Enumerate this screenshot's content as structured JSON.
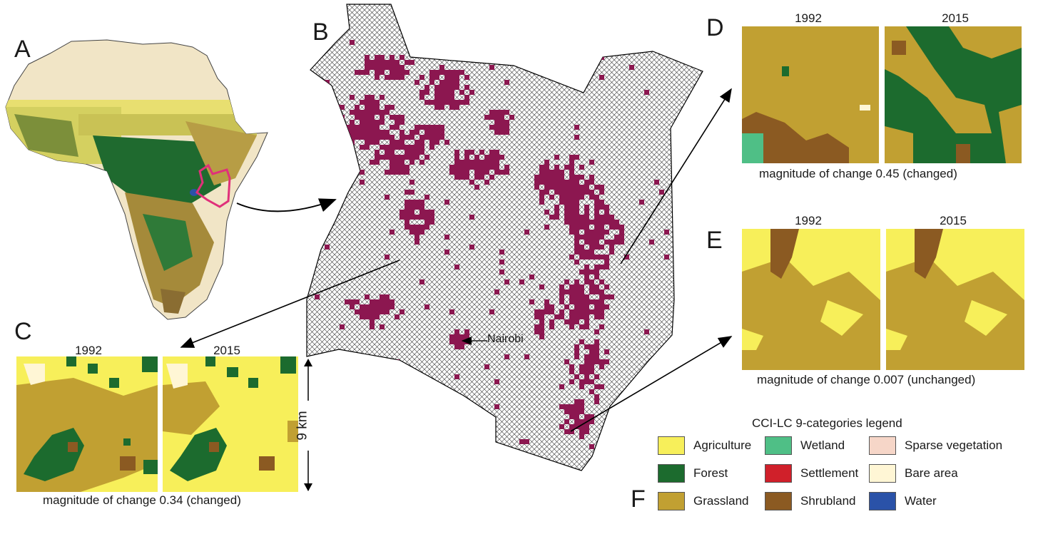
{
  "panels": {
    "a": "A",
    "b": "B",
    "c": "C",
    "d": "D",
    "e": "E",
    "f": "F"
  },
  "map_b": {
    "city_label": "Nairobi"
  },
  "panel_c": {
    "year_before": "1992",
    "year_after": "2015",
    "caption": "magnitude of change 0.34 (changed)",
    "scale_label": "9 km"
  },
  "panel_d": {
    "year_before": "1992",
    "year_after": "2015",
    "caption": "magnitude of change 0.45 (changed)"
  },
  "panel_e": {
    "year_before": "1992",
    "year_after": "2015",
    "caption": "magnitude of change 0.007 (unchanged)"
  },
  "legend": {
    "title": "CCI-LC 9-categories legend",
    "items": [
      {
        "label": "Agriculture",
        "color": "#f7ef5a"
      },
      {
        "label": "Wetland",
        "color": "#4fbf86"
      },
      {
        "label": "Sparse vegetation",
        "color": "#f6d6c8"
      },
      {
        "label": "Forest",
        "color": "#1c6b2e"
      },
      {
        "label": "Settlement",
        "color": "#d0202a"
      },
      {
        "label": "Bare area",
        "color": "#fff6d5"
      },
      {
        "label": "Grassland",
        "color": "#c1a032"
      },
      {
        "label": "Shrubland",
        "color": "#8b5a22"
      },
      {
        "label": "Water",
        "color": "#2a52a8"
      }
    ]
  },
  "colors": {
    "changed_cell": "#8c1750",
    "outline_highlight": "#e0307a"
  }
}
